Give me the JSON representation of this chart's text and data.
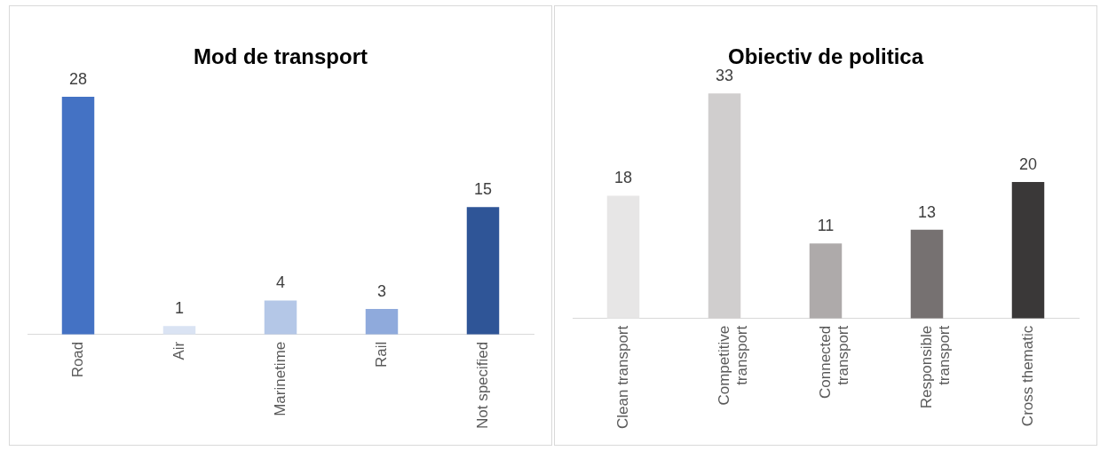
{
  "chart_data": [
    {
      "type": "bar",
      "title": "Mod de transport",
      "categories": [
        "Road",
        "Air",
        "Marinetime",
        "Rail",
        "Not specified"
      ],
      "values": [
        28,
        1,
        4,
        3,
        15
      ],
      "colors": [
        "#4472c4",
        "#dae3f3",
        "#b4c7e7",
        "#8faadc",
        "#2f5597"
      ],
      "data_labels": true,
      "legend": false,
      "grid": false
    },
    {
      "type": "bar",
      "title": "Obiectiv de politica",
      "categories": [
        "Clean transport",
        "Competitive transport",
        "Connected transport",
        "Responsible transport",
        "Cross thematic"
      ],
      "values": [
        18,
        33,
        11,
        13,
        20
      ],
      "colors": [
        "#e7e6e6",
        "#d0cece",
        "#aeaaaa",
        "#767171",
        "#3a3838"
      ],
      "data_labels": true,
      "legend": false,
      "grid": false
    }
  ]
}
